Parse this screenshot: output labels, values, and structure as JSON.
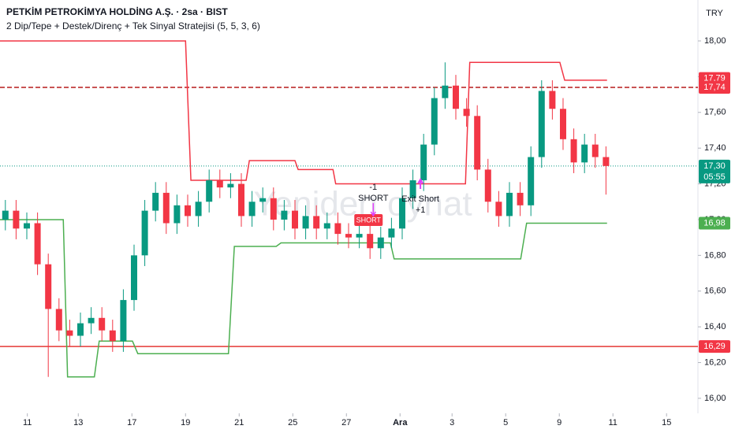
{
  "chart_data": {
    "type": "candlestick",
    "title": "PETKİM PETROKİMYA HOLDİNG A.Ş. · 2sa · BIST",
    "subtitle": "2 Dip/Tepe + Destek/Direnç + Tek Sinyal Stratejisi (5, 5, 3, 6)",
    "currency": "TRY",
    "watermark": "Yeniden oynat",
    "up_color": "#089981",
    "down_color": "#f23645",
    "x": [
      1,
      3,
      5,
      7,
      9,
      11,
      13,
      15,
      17,
      19,
      21,
      23,
      25,
      27,
      29,
      31,
      33,
      35,
      37,
      39,
      41,
      43,
      45,
      47,
      49,
      51,
      53,
      55,
      57,
      59,
      61,
      63,
      65,
      67,
      69,
      71,
      73,
      75,
      77,
      79,
      81,
      83,
      85,
      87,
      89,
      91,
      93,
      95,
      97,
      99,
      101,
      103,
      105,
      107,
      109,
      111,
      113
    ],
    "open": [
      17.0,
      17.05,
      16.95,
      16.98,
      16.75,
      16.5,
      16.38,
      16.35,
      16.42,
      16.45,
      16.38,
      16.32,
      16.55,
      16.8,
      17.05,
      17.15,
      16.98,
      17.08,
      17.02,
      17.1,
      17.22,
      17.18,
      17.2,
      17.02,
      17.1,
      17.12,
      17.0,
      17.05,
      16.95,
      17.02,
      16.95,
      16.98,
      16.92,
      16.9,
      16.92,
      16.84,
      16.9,
      16.95,
      17.12,
      17.22,
      17.42,
      17.68,
      17.75,
      17.62,
      17.58,
      17.28,
      17.1,
      17.02,
      17.15,
      17.08,
      17.35,
      17.72,
      17.62,
      17.45,
      17.32,
      17.42,
      17.35
    ],
    "high": [
      17.11,
      17.11,
      17.04,
      17.04,
      16.81,
      16.56,
      16.44,
      16.48,
      16.51,
      16.51,
      16.44,
      16.61,
      16.86,
      17.11,
      17.21,
      17.21,
      17.14,
      17.14,
      17.16,
      17.28,
      17.28,
      17.26,
      17.26,
      17.16,
      17.18,
      17.18,
      17.11,
      17.11,
      17.08,
      17.08,
      17.04,
      17.04,
      16.98,
      16.98,
      16.98,
      16.96,
      17.01,
      17.18,
      17.28,
      17.48,
      17.74,
      17.88,
      17.81,
      17.68,
      17.64,
      17.34,
      17.16,
      17.21,
      17.21,
      17.41,
      17.78,
      17.78,
      17.68,
      17.51,
      17.48,
      17.48,
      17.41
    ],
    "low": [
      16.94,
      16.89,
      16.89,
      16.69,
      16.12,
      16.32,
      16.29,
      16.29,
      16.36,
      16.32,
      16.26,
      16.26,
      16.49,
      16.74,
      16.99,
      16.92,
      16.92,
      16.96,
      16.96,
      17.04,
      17.12,
      17.12,
      16.96,
      16.96,
      17.04,
      16.94,
      16.94,
      16.89,
      16.89,
      16.89,
      16.89,
      16.86,
      16.84,
      16.84,
      16.78,
      16.78,
      16.84,
      16.89,
      17.06,
      17.16,
      17.36,
      17.62,
      17.56,
      17.52,
      17.22,
      17.04,
      16.96,
      16.96,
      17.02,
      17.02,
      17.29,
      17.56,
      17.39,
      17.26,
      17.26,
      17.29,
      17.14
    ],
    "close": [
      17.05,
      16.95,
      16.98,
      16.75,
      16.5,
      16.38,
      16.35,
      16.42,
      16.45,
      16.38,
      16.32,
      16.55,
      16.8,
      17.05,
      17.15,
      16.98,
      17.08,
      17.02,
      17.1,
      17.22,
      17.18,
      17.2,
      17.02,
      17.1,
      17.12,
      17.0,
      17.05,
      16.95,
      17.02,
      16.95,
      16.98,
      16.92,
      16.9,
      16.92,
      16.84,
      16.9,
      16.95,
      17.12,
      17.22,
      17.42,
      17.68,
      17.75,
      17.62,
      17.58,
      17.28,
      17.1,
      17.02,
      17.15,
      17.08,
      17.35,
      17.72,
      17.62,
      17.45,
      17.32,
      17.42,
      17.35,
      17.3
    ],
    "lines": [
      {
        "color": "#f23645",
        "x": [
          0,
          34.6,
          35.6,
          45.9,
          46.5,
          55,
          55.6,
          62.1,
          62.6,
          86.8,
          87.6,
          104.4,
          105.3,
          113.2
        ],
        "values": [
          18,
          18,
          17.22,
          17.22,
          17.33,
          17.33,
          17.28,
          17.28,
          17.2,
          17.2,
          17.88,
          17.88,
          17.78,
          17.78
        ]
      },
      {
        "color": "#4caf50",
        "x": [
          0,
          11.8,
          12.6,
          17.6,
          18.5,
          24.7,
          25.7,
          42.6,
          43.7,
          51.5,
          52.4,
          72.8,
          73.5,
          97.1,
          98.2,
          113.2
        ],
        "values": [
          17,
          17,
          16.12,
          16.12,
          16.32,
          16.32,
          16.25,
          16.25,
          16.85,
          16.85,
          16.87,
          16.87,
          16.78,
          16.78,
          16.98,
          16.98
        ]
      }
    ],
    "hlines": [
      {
        "value": 17.74,
        "color": "#b71c1c",
        "dashed": true
      },
      {
        "value": 16.29,
        "color": "#e53935",
        "dashed": false
      },
      {
        "value": 17.3,
        "color": "#089981",
        "dotted": true
      }
    ],
    "price_labels": [
      {
        "value": 17.79,
        "label": "17,79",
        "color": "#f23645"
      },
      {
        "value": 17.74,
        "label": "17,74",
        "color": "#f23645"
      },
      {
        "value": 17.3,
        "label": "17,30",
        "color": "#089981",
        "countdown": "05:55"
      },
      {
        "value": 16.98,
        "label": "16,98",
        "color": "#4caf50"
      },
      {
        "value": 16.29,
        "label": "16,29",
        "color": "#f23645"
      }
    ],
    "signals": [
      {
        "x": 69.6,
        "text": [
          "-1",
          "SHORT"
        ],
        "direction": "down",
        "tag": "SHORT",
        "color": "#e040fb"
      },
      {
        "x": 78.4,
        "text": [
          "Exit Short",
          "+1"
        ],
        "direction": "up",
        "color": "#e040fb"
      }
    ],
    "xlim": [
      0,
      130.15
    ],
    "xticks": [
      {
        "value": 5.1,
        "label": "11"
      },
      {
        "value": 14.6,
        "label": "13"
      },
      {
        "value": 24.6,
        "label": "17"
      },
      {
        "value": 34.6,
        "label": "19"
      },
      {
        "value": 44.6,
        "label": "21"
      },
      {
        "value": 54.6,
        "label": "25"
      },
      {
        "value": 64.6,
        "label": "27"
      },
      {
        "value": 74.6,
        "label": "Ara"
      },
      {
        "value": 84.3,
        "label": "3"
      },
      {
        "value": 94.3,
        "label": "5"
      },
      {
        "value": 104.3,
        "label": "9"
      },
      {
        "value": 114.3,
        "label": "11"
      },
      {
        "value": 124.3,
        "label": "15"
      }
    ],
    "ylim": [
      15.916,
      18.229
    ],
    "yticks": [
      {
        "value": 16,
        "label": "16,00"
      },
      {
        "value": 16.2,
        "label": "16,20"
      },
      {
        "value": 16.4,
        "label": "16,40"
      },
      {
        "value": 16.6,
        "label": "16,60"
      },
      {
        "value": 16.8,
        "label": "16,80"
      },
      {
        "value": 17,
        "label": "17,00"
      },
      {
        "value": 17.2,
        "label": "17,20"
      },
      {
        "value": 17.4,
        "label": "17,40"
      },
      {
        "value": 17.6,
        "label": "17,60"
      },
      {
        "value": 17.8,
        "label": "17,80"
      },
      {
        "value": 18,
        "label": "18,00"
      }
    ]
  }
}
